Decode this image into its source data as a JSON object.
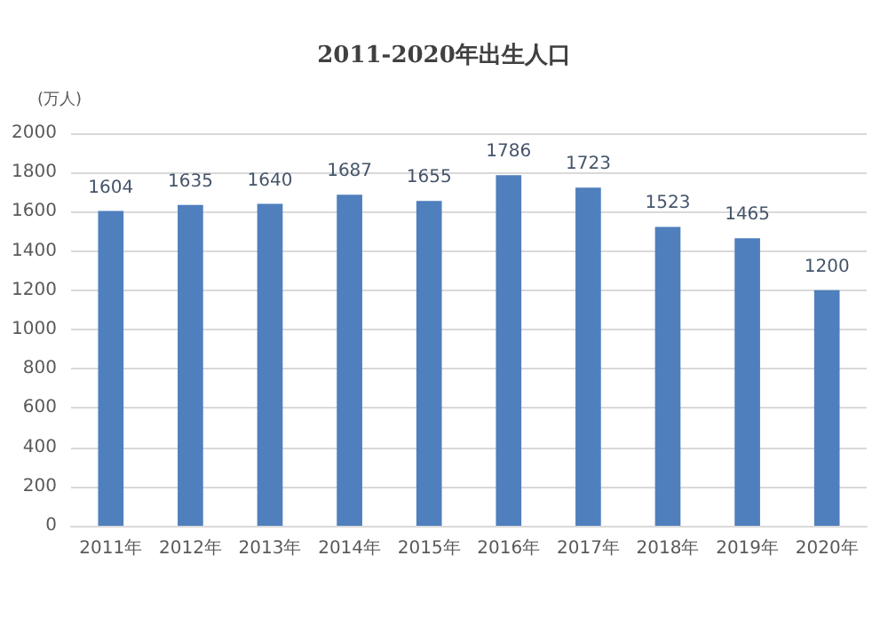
{
  "chart_data": {
    "type": "bar",
    "title": "2011-2020年出生人口",
    "ylabel": "(万人)",
    "categories": [
      "2011年",
      "2012年",
      "2013年",
      "2014年",
      "2015年",
      "2016年",
      "2017年",
      "2018年",
      "2019年",
      "2020年"
    ],
    "values": [
      1604,
      1635,
      1640,
      1687,
      1655,
      1786,
      1723,
      1523,
      1465,
      1200
    ],
    "color": "#4f7fbd",
    "ylim": [
      0,
      2000
    ],
    "yticks": [
      0,
      200,
      400,
      600,
      800,
      1000,
      1200,
      1400,
      1600,
      1800,
      2000
    ],
    "grid": "y",
    "data_labels": true
  }
}
